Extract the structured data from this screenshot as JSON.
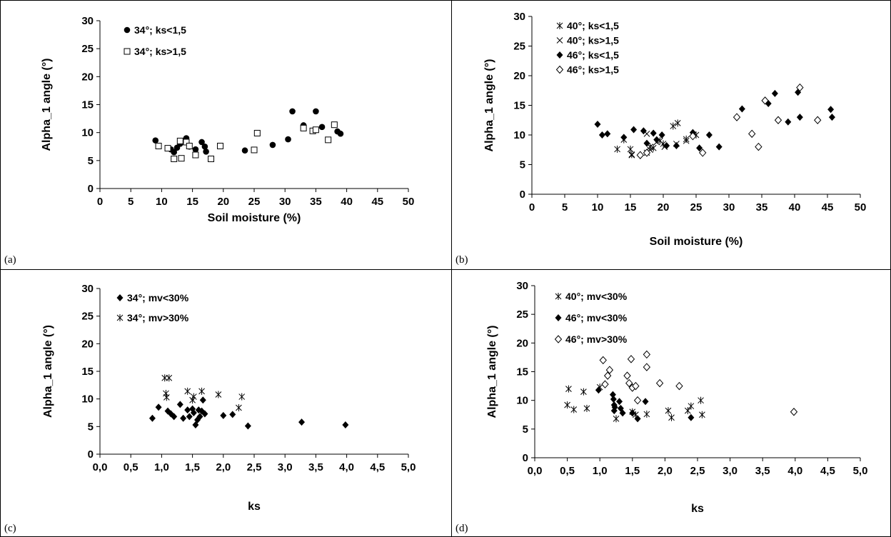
{
  "figure": {
    "panel_letters": [
      "(a)",
      "(b)",
      "(c)",
      "(d)"
    ]
  },
  "chart_data": [
    {
      "type": "scatter",
      "panel": "(a)",
      "xlabel": "Soil moisture (%)",
      "ylabel": "Alpha_1 angle (°)",
      "xlim": [
        0,
        50
      ],
      "ylim": [
        0,
        30
      ],
      "xticks": [
        0,
        5,
        10,
        15,
        20,
        25,
        30,
        35,
        40,
        45,
        50
      ],
      "yticks": [
        0,
        5,
        10,
        15,
        20,
        25,
        30
      ],
      "xtick_labels": [
        "0",
        "5",
        "10",
        "15",
        "20",
        "25",
        "30",
        "35",
        "40",
        "45",
        "50"
      ],
      "ytick_labels": [
        "0",
        "5",
        "10",
        "15",
        "20",
        "25",
        "30"
      ],
      "grid": false,
      "legend_position": "top-left",
      "series": [
        {
          "name": "34°; ks<1,5",
          "marker": "filled-circle",
          "points": [
            [
              9,
              8.6
            ],
            [
              11.5,
              7
            ],
            [
              12,
              6.5
            ],
            [
              12.5,
              7.3
            ],
            [
              13,
              8
            ],
            [
              13.5,
              8.5
            ],
            [
              14,
              9
            ],
            [
              14.5,
              7.5
            ],
            [
              15.5,
              7
            ],
            [
              16.5,
              8.3
            ],
            [
              17,
              7.5
            ],
            [
              17.2,
              6.6
            ],
            [
              23.5,
              6.8
            ],
            [
              28,
              7.8
            ],
            [
              30.5,
              8.8
            ],
            [
              31.2,
              13.8
            ],
            [
              33,
              11.3
            ],
            [
              35,
              13.8
            ],
            [
              36,
              11
            ],
            [
              38.5,
              10.2
            ],
            [
              39,
              9.8
            ]
          ]
        },
        {
          "name": "34°; ks>1,5",
          "marker": "open-square",
          "points": [
            [
              9.5,
              7.6
            ],
            [
              11,
              7.2
            ],
            [
              12,
              5.3
            ],
            [
              13,
              8.5
            ],
            [
              13.2,
              5.4
            ],
            [
              14,
              8.3
            ],
            [
              14.5,
              7.6
            ],
            [
              15.5,
              6
            ],
            [
              18,
              5.3
            ],
            [
              19.5,
              7.6
            ],
            [
              25,
              6.9
            ],
            [
              25.5,
              9.9
            ],
            [
              33,
              10.8
            ],
            [
              34.5,
              10.3
            ],
            [
              35,
              10.5
            ],
            [
              37,
              8.7
            ],
            [
              38,
              11.4
            ]
          ]
        }
      ]
    },
    {
      "type": "scatter",
      "panel": "(b)",
      "xlabel": "Soil moisture (%)",
      "ylabel": "Alpha_1 angle (°)",
      "xlim": [
        0,
        50
      ],
      "ylim": [
        0,
        30
      ],
      "xticks": [
        0,
        5,
        10,
        15,
        20,
        25,
        30,
        35,
        40,
        45,
        50
      ],
      "yticks": [
        0,
        5,
        10,
        15,
        20,
        25,
        30
      ],
      "xtick_labels": [
        "0",
        "5",
        "10",
        "15",
        "20",
        "25",
        "30",
        "35",
        "40",
        "45",
        "50"
      ],
      "ytick_labels": [
        "0",
        "5",
        "10",
        "15",
        "20",
        "25",
        "30"
      ],
      "grid": false,
      "legend_position": "top-left",
      "series": [
        {
          "name": "40°; ks<1,5",
          "marker": "asterisk",
          "points": [
            [
              13,
              7.6
            ],
            [
              14,
              9.2
            ],
            [
              15,
              7.6
            ],
            [
              15.2,
              6.7
            ],
            [
              17.5,
              7
            ],
            [
              18,
              8
            ],
            [
              18.5,
              7.8
            ],
            [
              19.5,
              9
            ],
            [
              20,
              8.5
            ],
            [
              21.5,
              11.5
            ],
            [
              22.2,
              12
            ],
            [
              23.5,
              9.3
            ],
            [
              25,
              10
            ]
          ]
        },
        {
          "name": "40°; ks>1,5",
          "marker": "x-cross",
          "points": [
            [
              15.2,
              6.6
            ],
            [
              17.5,
              10.2
            ],
            [
              18,
              7.5
            ],
            [
              19,
              8.8
            ],
            [
              20.2,
              8
            ],
            [
              22,
              8.5
            ],
            [
              23.5,
              9
            ]
          ]
        },
        {
          "name": "46°; ks<1,5",
          "marker": "filled-diamond",
          "points": [
            [
              10,
              11.8
            ],
            [
              10.7,
              10
            ],
            [
              11.5,
              10.2
            ],
            [
              14,
              9.6
            ],
            [
              15.5,
              10.9
            ],
            [
              17,
              10.7
            ],
            [
              17.5,
              8.6
            ],
            [
              18.5,
              10.3
            ],
            [
              19,
              9.2
            ],
            [
              19.8,
              10
            ],
            [
              20.5,
              8.2
            ],
            [
              22,
              8.2
            ],
            [
              24.5,
              10.4
            ],
            [
              25.5,
              7.8
            ],
            [
              27,
              10
            ],
            [
              28.5,
              8
            ],
            [
              32,
              14.4
            ],
            [
              36,
              15.3
            ],
            [
              37,
              17
            ],
            [
              39,
              12.2
            ],
            [
              40.5,
              17.2
            ],
            [
              40.8,
              13
            ],
            [
              45.5,
              14.3
            ],
            [
              45.7,
              13
            ]
          ]
        },
        {
          "name": "46°; ks>1,5",
          "marker": "open-diamond",
          "points": [
            [
              16.5,
              6.6
            ],
            [
              17.5,
              7
            ],
            [
              24.5,
              9.8
            ],
            [
              26,
              7
            ],
            [
              31.2,
              13
            ],
            [
              33.5,
              10.2
            ],
            [
              34.5,
              8
            ],
            [
              35.5,
              15.8
            ],
            [
              37.5,
              12.5
            ],
            [
              40.8,
              18
            ],
            [
              43.5,
              12.5
            ]
          ]
        }
      ]
    },
    {
      "type": "scatter",
      "panel": "(c)",
      "xlabel": "ks",
      "ylabel": "Alpha_1 angle (°)",
      "xlim": [
        0,
        5
      ],
      "ylim": [
        0,
        30
      ],
      "xticks": [
        0,
        0.5,
        1,
        1.5,
        2,
        2.5,
        3,
        3.5,
        4,
        4.5,
        5
      ],
      "yticks": [
        0,
        5,
        10,
        15,
        20,
        25,
        30
      ],
      "xtick_labels": [
        "0,0",
        "0,5",
        "1,0",
        "1,5",
        "2,0",
        "2,5",
        "3,0",
        "3,5",
        "4,0",
        "4,5",
        "5,0"
      ],
      "ytick_labels": [
        "0",
        "5",
        "10",
        "15",
        "20",
        "25",
        "30"
      ],
      "grid": false,
      "legend_position": "top-left",
      "series": [
        {
          "name": "34°; mv<30%",
          "marker": "filled-diamond",
          "points": [
            [
              0.85,
              6.5
            ],
            [
              0.95,
              8.5
            ],
            [
              1.1,
              7.8
            ],
            [
              1.15,
              7.3
            ],
            [
              1.2,
              6.8
            ],
            [
              1.3,
              9
            ],
            [
              1.35,
              6.5
            ],
            [
              1.42,
              8
            ],
            [
              1.45,
              6.8
            ],
            [
              1.5,
              8.2
            ],
            [
              1.52,
              7.5
            ],
            [
              1.55,
              5.3
            ],
            [
              1.58,
              6.2
            ],
            [
              1.6,
              8
            ],
            [
              1.62,
              6.8
            ],
            [
              1.65,
              7.8
            ],
            [
              1.67,
              9.8
            ],
            [
              1.7,
              7.3
            ],
            [
              2.0,
              7
            ],
            [
              2.15,
              7.2
            ],
            [
              2.4,
              5.1
            ],
            [
              3.27,
              5.8
            ],
            [
              3.98,
              5.3
            ]
          ]
        },
        {
          "name": "34°; mv>30%",
          "marker": "asterisk",
          "points": [
            [
              1.05,
              13.8
            ],
            [
              1.07,
              11
            ],
            [
              1.08,
              10.3
            ],
            [
              1.12,
              13.8
            ],
            [
              1.42,
              11.4
            ],
            [
              1.5,
              9.8
            ],
            [
              1.52,
              10.4
            ],
            [
              1.65,
              11.4
            ],
            [
              1.92,
              10.8
            ],
            [
              2.25,
              8.4
            ],
            [
              2.3,
              10.4
            ]
          ]
        }
      ]
    },
    {
      "type": "scatter",
      "panel": "(d)",
      "xlabel": "ks",
      "ylabel": "Alpha_1 angle (°)",
      "xlim": [
        0,
        5
      ],
      "ylim": [
        0,
        30
      ],
      "xticks": [
        0,
        0.5,
        1,
        1.5,
        2,
        2.5,
        3,
        3.5,
        4,
        4.5,
        5
      ],
      "yticks": [
        0,
        5,
        10,
        15,
        20,
        25,
        30
      ],
      "xtick_labels": [
        "0,0",
        "0,5",
        "1,0",
        "1,5",
        "2,0",
        "2,5",
        "3,0",
        "3,5",
        "4,0",
        "4,5",
        "5,0"
      ],
      "ytick_labels": [
        "0",
        "5",
        "10",
        "15",
        "20",
        "25",
        "30"
      ],
      "grid": false,
      "legend_position": "top-left",
      "series": [
        {
          "name": "40°; mv<30%",
          "marker": "asterisk",
          "points": [
            [
              0.5,
              9.2
            ],
            [
              0.52,
              12
            ],
            [
              0.6,
              8.4
            ],
            [
              0.75,
              11.5
            ],
            [
              0.8,
              8.6
            ],
            [
              1.0,
              12.3
            ],
            [
              1.25,
              6.8
            ],
            [
              1.5,
              8
            ],
            [
              1.55,
              7.5
            ],
            [
              1.72,
              7.6
            ],
            [
              2.05,
              8.2
            ],
            [
              2.1,
              7
            ],
            [
              2.35,
              8.2
            ],
            [
              2.4,
              9
            ],
            [
              2.55,
              10
            ],
            [
              2.57,
              7.5
            ]
          ]
        },
        {
          "name": "46°; mv<30%",
          "marker": "filled-diamond",
          "points": [
            [
              0.98,
              11.8
            ],
            [
              1.2,
              11
            ],
            [
              1.21,
              10.2
            ],
            [
              1.22,
              9.2
            ],
            [
              1.22,
              8.2
            ],
            [
              1.23,
              8.8
            ],
            [
              1.3,
              9.8
            ],
            [
              1.32,
              8.6
            ],
            [
              1.35,
              7.8
            ],
            [
              1.5,
              7.8
            ],
            [
              1.58,
              6.8
            ],
            [
              1.7,
              9.8
            ],
            [
              2.4,
              7
            ]
          ]
        },
        {
          "name": "46°; mv>30%",
          "marker": "open-diamond",
          "points": [
            [
              1.05,
              17
            ],
            [
              1.08,
              12.8
            ],
            [
              1.12,
              14.3
            ],
            [
              1.15,
              15.3
            ],
            [
              1.42,
              14.3
            ],
            [
              1.45,
              13
            ],
            [
              1.48,
              17.2
            ],
            [
              1.5,
              12.2
            ],
            [
              1.55,
              12.5
            ],
            [
              1.58,
              10
            ],
            [
              1.72,
              18
            ],
            [
              1.72,
              15.8
            ],
            [
              1.92,
              13
            ],
            [
              2.22,
              12.5
            ],
            [
              3.98,
              8
            ]
          ]
        }
      ]
    }
  ]
}
